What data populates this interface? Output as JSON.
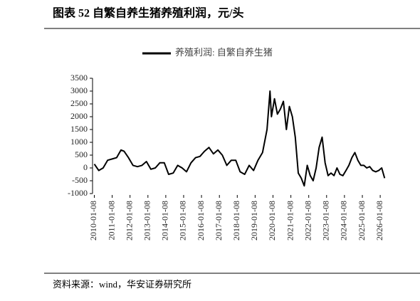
{
  "chart_data": {
    "type": "line",
    "title": "图表 52 自繁自养生猪养殖利润，元/头",
    "source": "资料来源：wind，华安证券研究所",
    "xlim": [
      "2010-01-01",
      "2026-06-01"
    ],
    "xticks": [
      "2010-01-08",
      "2011-01-08",
      "2012-01-08",
      "2013-01-08",
      "2014-01-08",
      "2015-01-08",
      "2016-01-08",
      "2017-01-08",
      "2018-01-08",
      "2019-01-08",
      "2020-01-08",
      "2021-01-08",
      "2022-01-08",
      "2023-01-08",
      "2024-01-08",
      "2025-01-08",
      "2026-01-08"
    ],
    "ylim": [
      -1000,
      3500
    ],
    "yticks": [
      3500,
      3000,
      2500,
      2000,
      1500,
      1000,
      500,
      0,
      -500,
      -1000
    ],
    "x": [
      "2010-01-08",
      "2010-04-08",
      "2010-07-08",
      "2010-10-08",
      "2011-01-08",
      "2011-04-08",
      "2011-07-08",
      "2011-09-08",
      "2011-12-08",
      "2012-03-08",
      "2012-06-08",
      "2012-09-08",
      "2012-12-08",
      "2013-03-08",
      "2013-06-08",
      "2013-09-08",
      "2013-12-08",
      "2014-03-08",
      "2014-06-08",
      "2014-09-08",
      "2014-12-08",
      "2015-03-08",
      "2015-06-08",
      "2015-09-08",
      "2015-12-08",
      "2016-03-08",
      "2016-06-08",
      "2016-09-08",
      "2016-12-08",
      "2017-03-08",
      "2017-06-08",
      "2017-09-08",
      "2017-12-08",
      "2018-03-08",
      "2018-06-08",
      "2018-09-08",
      "2018-12-08",
      "2019-03-08",
      "2019-06-08",
      "2019-09-08",
      "2019-11-08",
      "2019-12-08",
      "2020-02-08",
      "2020-04-08",
      "2020-06-08",
      "2020-08-08",
      "2020-10-08",
      "2020-12-08",
      "2021-02-08",
      "2021-04-08",
      "2021-06-08",
      "2021-08-08",
      "2021-10-08",
      "2021-12-08",
      "2022-02-08",
      "2022-04-08",
      "2022-06-08",
      "2022-08-08",
      "2022-10-08",
      "2022-12-08",
      "2023-02-08",
      "2023-04-08",
      "2023-06-08",
      "2023-08-08",
      "2023-10-08",
      "2023-12-08",
      "2024-02-08",
      "2024-04-08",
      "2024-06-08",
      "2024-08-08",
      "2024-10-08",
      "2024-12-08",
      "2025-02-08",
      "2025-04-08",
      "2025-06-08",
      "2025-08-08",
      "2025-10-08",
      "2025-12-08",
      "2026-02-08",
      "2026-04-08"
    ],
    "series": [
      {
        "name": "养殖利润: 自繁自养生猪",
        "color": "#000000",
        "values": [
          150,
          -100,
          0,
          300,
          350,
          400,
          700,
          650,
          400,
          100,
          50,
          100,
          250,
          -50,
          0,
          200,
          200,
          -250,
          -200,
          100,
          0,
          -150,
          200,
          400,
          450,
          650,
          800,
          550,
          700,
          500,
          100,
          300,
          300,
          -150,
          -250,
          100,
          -100,
          300,
          600,
          1500,
          3000,
          2000,
          2700,
          2100,
          2300,
          2600,
          1500,
          2400,
          2000,
          1200,
          -200,
          -400,
          -700,
          100,
          -300,
          -500,
          0,
          800,
          1200,
          200,
          -300,
          -200,
          -300,
          0,
          -250,
          -300,
          -100,
          100,
          400,
          600,
          300,
          100,
          100,
          0,
          50,
          -100,
          -150,
          -100,
          0,
          -400
        ]
      }
    ]
  }
}
